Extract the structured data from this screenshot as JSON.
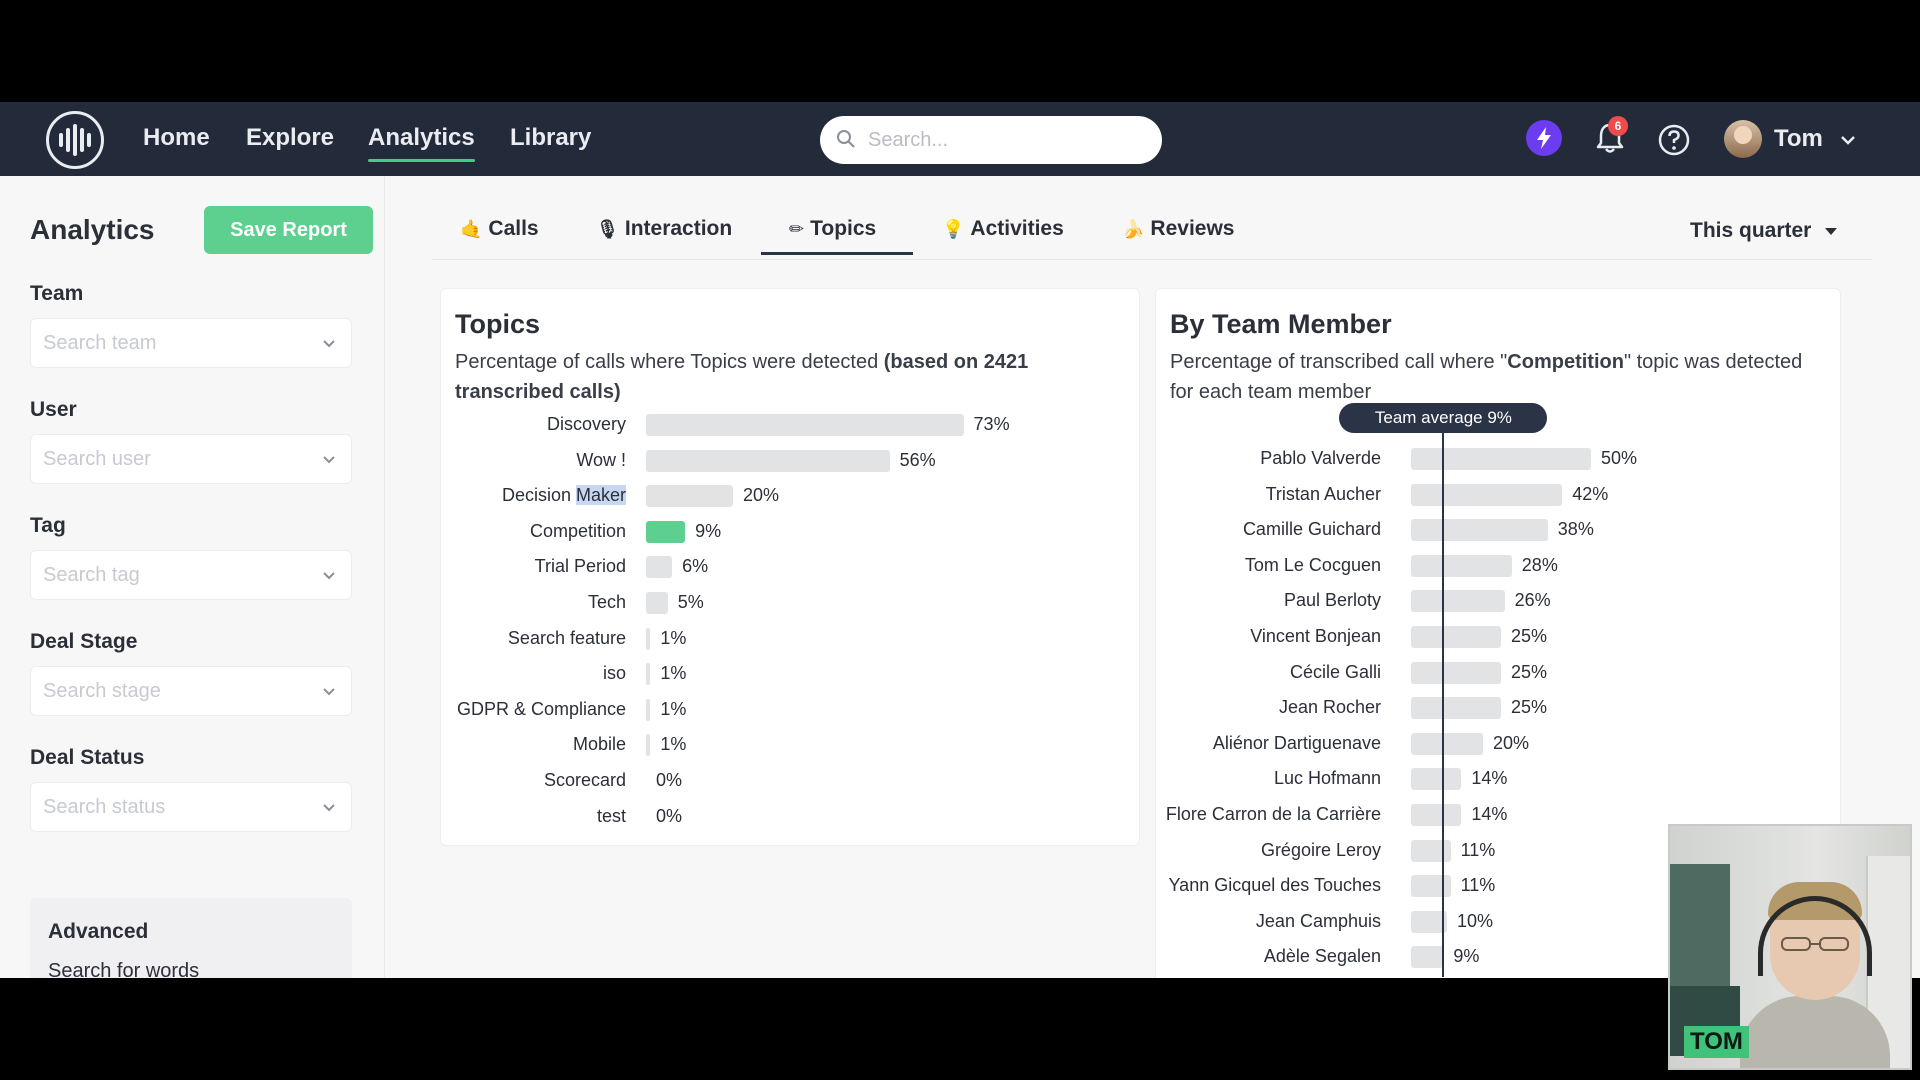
{
  "nav": {
    "items": [
      "Home",
      "Explore",
      "Analytics",
      "Library"
    ],
    "search_placeholder": "Search...",
    "notification_count": "6",
    "username": "Tom"
  },
  "sidebar": {
    "title": "Analytics",
    "save_label": "Save Report",
    "filters": [
      {
        "label": "Team",
        "placeholder": "Search team"
      },
      {
        "label": "User",
        "placeholder": "Search user"
      },
      {
        "label": "Tag",
        "placeholder": "Search tag"
      },
      {
        "label": "Deal Stage",
        "placeholder": "Search stage"
      },
      {
        "label": "Deal Status",
        "placeholder": "Search status"
      }
    ],
    "advanced_title": "Advanced",
    "advanced_sub": "Search for words"
  },
  "tabs": {
    "items": [
      "Calls",
      "Interaction",
      "Topics",
      "Activities",
      "Reviews"
    ],
    "active": "Topics",
    "period": "This quarter"
  },
  "topics": {
    "title": "Topics",
    "desc_prefix": "Percentage of calls where Topics were detected ",
    "desc_bold": "(based on 2421 transcribed calls)",
    "rows": [
      {
        "label": "Discovery",
        "value": 73
      },
      {
        "label": "Wow !",
        "value": 56
      },
      {
        "label": "Decision Maker",
        "value": 20
      },
      {
        "label": "Competition",
        "value": 9,
        "highlight": true
      },
      {
        "label": "Trial Period",
        "value": 6
      },
      {
        "label": "Tech",
        "value": 5
      },
      {
        "label": "Search feature",
        "value": 1
      },
      {
        "label": "iso",
        "value": 1
      },
      {
        "label": "GDPR & Compliance",
        "value": 1
      },
      {
        "label": "Mobile",
        "value": 1
      },
      {
        "label": "Scorecard",
        "value": 0
      },
      {
        "label": "test",
        "value": 0
      }
    ]
  },
  "members": {
    "title": "By Team Member",
    "desc_1": "Percentage of transcribed call where \"",
    "desc_bold": "Competition",
    "desc_2": "\" topic was detected for each team member",
    "average_label": "Team average 9%",
    "average_value": 9,
    "rows": [
      {
        "label": "Pablo Valverde",
        "value": 50
      },
      {
        "label": "Tristan Aucher",
        "value": 42
      },
      {
        "label": "Camille Guichard",
        "value": 38
      },
      {
        "label": "Tom Le Cocguen",
        "value": 28
      },
      {
        "label": "Paul Berloty",
        "value": 26
      },
      {
        "label": "Vincent Bonjean",
        "value": 25
      },
      {
        "label": "Cécile Galli",
        "value": 25
      },
      {
        "label": "Jean Rocher",
        "value": 25
      },
      {
        "label": "Aliénor Dartiguenave",
        "value": 20
      },
      {
        "label": "Luc Hofmann",
        "value": 14
      },
      {
        "label": "Flore Carron de la Carrière",
        "value": 14
      },
      {
        "label": "Grégoire Leroy",
        "value": 11
      },
      {
        "label": "Yann Gicquel des Touches",
        "value": 11
      },
      {
        "label": "Jean Camphuis",
        "value": 10
      },
      {
        "label": "Adèle Segalen",
        "value": 9
      }
    ]
  },
  "webcam": {
    "name": "TOM"
  },
  "colors": {
    "accent": "#5dd08f",
    "topbar": "#232b3a",
    "bar": "#e2e3e5"
  }
}
